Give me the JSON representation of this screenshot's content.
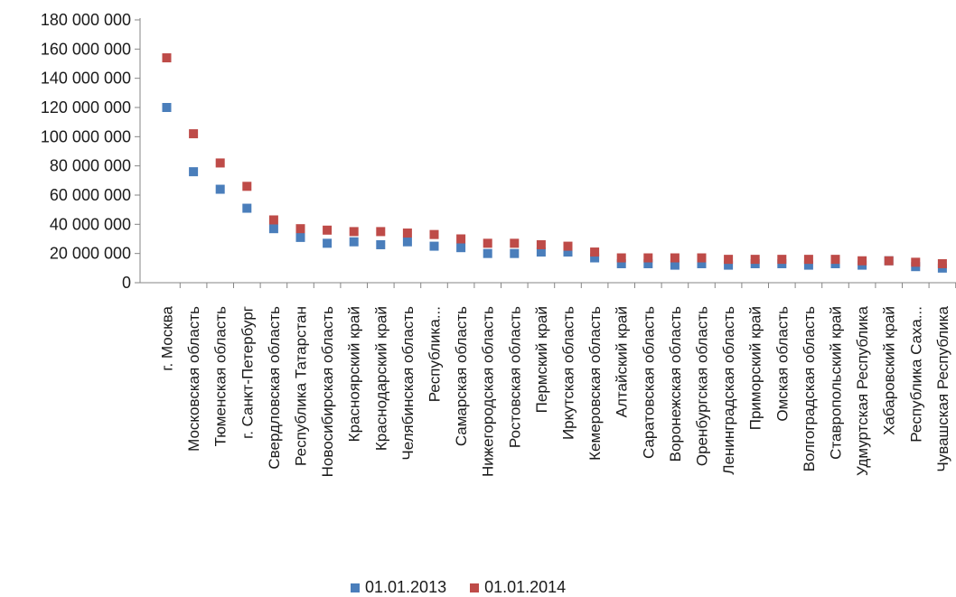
{
  "chart_data": {
    "type": "scatter",
    "categories": [
      "г. Москва",
      "Московская область",
      "Тюменская область",
      "г. Санкт-Петербург",
      "Свердловская область",
      "Республика Татарстан",
      "Новосибирская область",
      "Красноярский край",
      "Краснодарский край",
      "Челябинская область",
      "Республика...",
      "Самарская область",
      "Нижегородская область",
      "Ростовская область",
      "Пермский край",
      "Иркутская область",
      "Кемеровская область",
      "Алтайский край",
      "Саратовская область",
      "Воронежская область",
      "Оренбургская область",
      "Ленинградская область",
      "Приморский край",
      "Омская область",
      "Волгоградская область",
      "Ставропольский край",
      "Удмуртская Республика",
      "Хабаровский край",
      "Республика Саха...",
      "Чувашская Республика"
    ],
    "series": [
      {
        "name": "01.01.2013",
        "color": "#4a7ebb",
        "values": [
          120000000,
          76000000,
          64000000,
          51000000,
          37000000,
          31000000,
          27000000,
          28000000,
          26000000,
          28000000,
          25000000,
          24000000,
          20000000,
          20000000,
          21000000,
          21000000,
          17000000,
          13000000,
          13000000,
          12000000,
          13000000,
          12000000,
          13000000,
          13000000,
          12000000,
          13000000,
          12000000,
          15000000,
          11000000,
          10000000
        ]
      },
      {
        "name": "01.01.2014",
        "color": "#be4b48",
        "values": [
          154000000,
          102000000,
          82000000,
          66000000,
          43000000,
          37000000,
          36000000,
          35000000,
          35000000,
          34000000,
          33000000,
          30000000,
          27000000,
          27000000,
          26000000,
          25000000,
          21000000,
          17000000,
          17000000,
          17000000,
          17000000,
          16000000,
          16000000,
          16000000,
          16000000,
          16000000,
          15000000,
          15000000,
          14000000,
          13000000
        ]
      }
    ],
    "y_ticks": [
      "0",
      "20 000 000",
      "40 000 000",
      "60 000 000",
      "80 000 000",
      "100 000 000",
      "120 000 000",
      "140 000 000",
      "160 000 000",
      "180 000 000"
    ],
    "ylim": [
      0,
      180000000
    ],
    "grid": false,
    "legend_position": "bottom"
  }
}
